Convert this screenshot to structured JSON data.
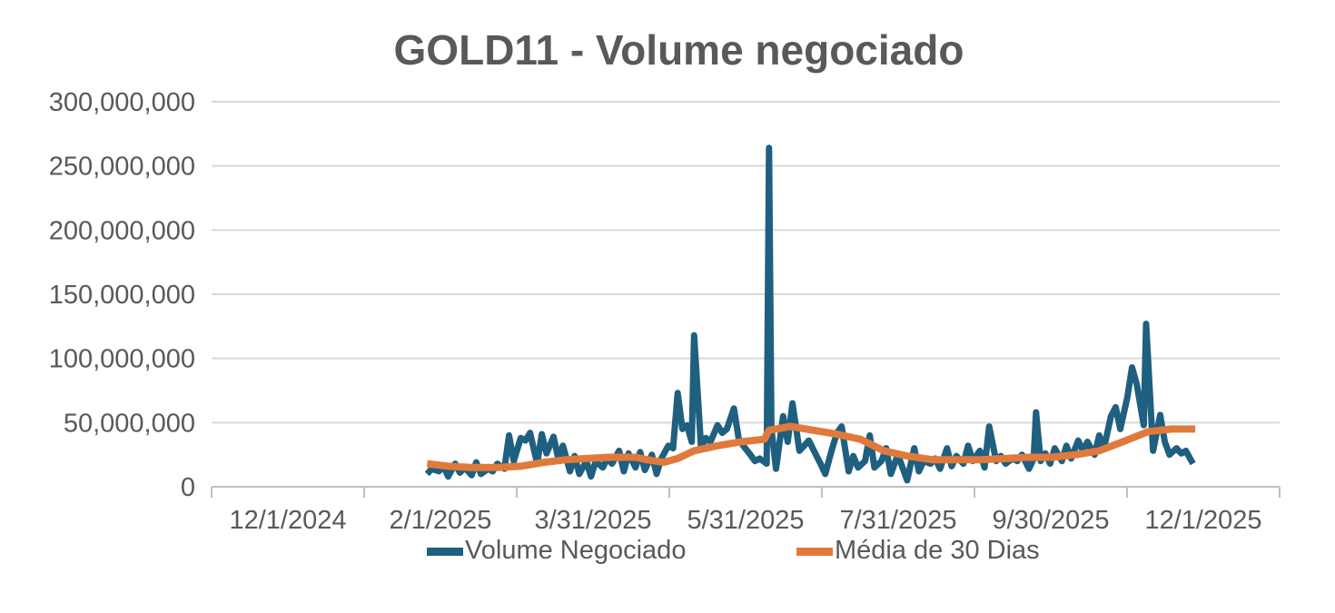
{
  "chart_data": {
    "type": "line",
    "title": "GOLD11 - Volume negociado",
    "xlabel": "",
    "ylabel": "",
    "ylim": [
      0,
      300000000
    ],
    "xlim": [
      "2024-10-01",
      "2025-12-31"
    ],
    "y_ticks": [
      "0",
      "50,000,000",
      "100,000,000",
      "150,000,000",
      "200,000,000",
      "250,000,000",
      "300,000,000"
    ],
    "x_ticks": [
      {
        "date": "2024-12-01",
        "label": "12/1/2024"
      },
      {
        "date": "2025-02-01",
        "label": "2/1/2025"
      },
      {
        "date": "2025-03-31",
        "label": "3/31/2025"
      },
      {
        "date": "2025-05-31",
        "label": "5/31/2025"
      },
      {
        "date": "2025-07-31",
        "label": "7/31/2025"
      },
      {
        "date": "2025-09-30",
        "label": "9/30/2025"
      },
      {
        "date": "2025-12-01",
        "label": "12/1/2025"
      }
    ],
    "grid": true,
    "legend": "bottom",
    "series": [
      {
        "name": "Volume Negociado",
        "color": "#1f5f7f",
        "points": [
          [
            "2025-01-01",
            10000000
          ],
          [
            "2025-01-03",
            14000000
          ],
          [
            "2025-01-06",
            12000000
          ],
          [
            "2025-01-08",
            16000000
          ],
          [
            "2025-01-10",
            8000000
          ],
          [
            "2025-01-13",
            18000000
          ],
          [
            "2025-01-15",
            11000000
          ],
          [
            "2025-01-17",
            15000000
          ],
          [
            "2025-01-20",
            9000000
          ],
          [
            "2025-01-22",
            19000000
          ],
          [
            "2025-01-24",
            10000000
          ],
          [
            "2025-01-27",
            14000000
          ],
          [
            "2025-01-29",
            12000000
          ],
          [
            "2025-01-31",
            18000000
          ],
          [
            "2025-02-03",
            14000000
          ],
          [
            "2025-02-05",
            40000000
          ],
          [
            "2025-02-07",
            20000000
          ],
          [
            "2025-02-10",
            38000000
          ],
          [
            "2025-02-12",
            36000000
          ],
          [
            "2025-02-14",
            42000000
          ],
          [
            "2025-02-17",
            18000000
          ],
          [
            "2025-02-19",
            41000000
          ],
          [
            "2025-02-21",
            26000000
          ],
          [
            "2025-02-24",
            39000000
          ],
          [
            "2025-02-26",
            22000000
          ],
          [
            "2025-02-28",
            32000000
          ],
          [
            "2025-03-03",
            12000000
          ],
          [
            "2025-03-05",
            24000000
          ],
          [
            "2025-03-07",
            10000000
          ],
          [
            "2025-03-10",
            20000000
          ],
          [
            "2025-03-12",
            8000000
          ],
          [
            "2025-03-14",
            20000000
          ],
          [
            "2025-03-17",
            15000000
          ],
          [
            "2025-03-19",
            22000000
          ],
          [
            "2025-03-21",
            18000000
          ],
          [
            "2025-03-24",
            28000000
          ],
          [
            "2025-03-26",
            12000000
          ],
          [
            "2025-03-28",
            26000000
          ],
          [
            "2025-03-31",
            15000000
          ],
          [
            "2025-04-02",
            27000000
          ],
          [
            "2025-04-04",
            13000000
          ],
          [
            "2025-04-07",
            25000000
          ],
          [
            "2025-04-09",
            10000000
          ],
          [
            "2025-04-11",
            22000000
          ],
          [
            "2025-04-14",
            32000000
          ],
          [
            "2025-04-16",
            30000000
          ],
          [
            "2025-04-18",
            73000000
          ],
          [
            "2025-04-20",
            45000000
          ],
          [
            "2025-04-22",
            48000000
          ],
          [
            "2025-04-24",
            35000000
          ],
          [
            "2025-04-25",
            118000000
          ],
          [
            "2025-04-28",
            30000000
          ],
          [
            "2025-04-30",
            38000000
          ],
          [
            "2025-05-02",
            35000000
          ],
          [
            "2025-05-05",
            48000000
          ],
          [
            "2025-05-07",
            42000000
          ],
          [
            "2025-05-09",
            45000000
          ],
          [
            "2025-05-12",
            61000000
          ],
          [
            "2025-05-14",
            38000000
          ],
          [
            "2025-05-16",
            32000000
          ],
          [
            "2025-05-19",
            25000000
          ],
          [
            "2025-05-21",
            20000000
          ],
          [
            "2025-05-23",
            22000000
          ],
          [
            "2025-05-26",
            18000000
          ],
          [
            "2025-05-27",
            264000000
          ],
          [
            "2025-05-28",
            45000000
          ],
          [
            "2025-05-30",
            14000000
          ],
          [
            "2025-06-02",
            55000000
          ],
          [
            "2025-06-04",
            35000000
          ],
          [
            "2025-06-06",
            65000000
          ],
          [
            "2025-06-09",
            28000000
          ],
          [
            "2025-06-11",
            32000000
          ],
          [
            "2025-06-13",
            36000000
          ],
          [
            "2025-06-16",
            25000000
          ],
          [
            "2025-06-18",
            18000000
          ],
          [
            "2025-06-20",
            10000000
          ],
          [
            "2025-06-23",
            30000000
          ],
          [
            "2025-06-25",
            42000000
          ],
          [
            "2025-06-27",
            47000000
          ],
          [
            "2025-06-30",
            12000000
          ],
          [
            "2025-07-02",
            24000000
          ],
          [
            "2025-07-04",
            15000000
          ],
          [
            "2025-07-07",
            20000000
          ],
          [
            "2025-07-09",
            40000000
          ],
          [
            "2025-07-11",
            15000000
          ],
          [
            "2025-07-14",
            20000000
          ],
          [
            "2025-07-16",
            30000000
          ],
          [
            "2025-07-18",
            10000000
          ],
          [
            "2025-07-21",
            25000000
          ],
          [
            "2025-07-23",
            15000000
          ],
          [
            "2025-07-25",
            5000000
          ],
          [
            "2025-07-28",
            30000000
          ],
          [
            "2025-07-30",
            12000000
          ],
          [
            "2025-08-01",
            20000000
          ],
          [
            "2025-08-04",
            18000000
          ],
          [
            "2025-08-06",
            22000000
          ],
          [
            "2025-08-08",
            14000000
          ],
          [
            "2025-08-11",
            30000000
          ],
          [
            "2025-08-13",
            16000000
          ],
          [
            "2025-08-15",
            24000000
          ],
          [
            "2025-08-18",
            18000000
          ],
          [
            "2025-08-20",
            32000000
          ],
          [
            "2025-08-22",
            20000000
          ],
          [
            "2025-08-25",
            28000000
          ],
          [
            "2025-08-27",
            15000000
          ],
          [
            "2025-08-29",
            47000000
          ],
          [
            "2025-09-01",
            20000000
          ],
          [
            "2025-09-03",
            24000000
          ],
          [
            "2025-09-05",
            18000000
          ],
          [
            "2025-09-08",
            22000000
          ],
          [
            "2025-09-10",
            20000000
          ],
          [
            "2025-09-12",
            25000000
          ],
          [
            "2025-09-15",
            14000000
          ],
          [
            "2025-09-17",
            22000000
          ],
          [
            "2025-09-18",
            58000000
          ],
          [
            "2025-09-20",
            20000000
          ],
          [
            "2025-09-22",
            26000000
          ],
          [
            "2025-09-24",
            18000000
          ],
          [
            "2025-09-26",
            30000000
          ],
          [
            "2025-09-29",
            20000000
          ],
          [
            "2025-10-01",
            32000000
          ],
          [
            "2025-10-03",
            22000000
          ],
          [
            "2025-10-06",
            36000000
          ],
          [
            "2025-10-08",
            28000000
          ],
          [
            "2025-10-10",
            35000000
          ],
          [
            "2025-10-13",
            25000000
          ],
          [
            "2025-10-15",
            40000000
          ],
          [
            "2025-10-17",
            30000000
          ],
          [
            "2025-10-20",
            55000000
          ],
          [
            "2025-10-22",
            62000000
          ],
          [
            "2025-10-24",
            45000000
          ],
          [
            "2025-10-27",
            70000000
          ],
          [
            "2025-10-29",
            93000000
          ],
          [
            "2025-10-31",
            80000000
          ],
          [
            "2025-11-03",
            48000000
          ],
          [
            "2025-11-04",
            127000000
          ],
          [
            "2025-11-06",
            60000000
          ],
          [
            "2025-11-07",
            28000000
          ],
          [
            "2025-11-10",
            56000000
          ],
          [
            "2025-11-12",
            35000000
          ],
          [
            "2025-11-14",
            25000000
          ],
          [
            "2025-11-17",
            30000000
          ],
          [
            "2025-11-19",
            26000000
          ],
          [
            "2025-11-21",
            28000000
          ],
          [
            "2025-11-24",
            18000000
          ]
        ]
      },
      {
        "name": "Média de 30 Dias",
        "color": "#e07a3c",
        "points": [
          [
            "2025-01-01",
            18000000
          ],
          [
            "2025-01-10",
            16000000
          ],
          [
            "2025-01-20",
            15000000
          ],
          [
            "2025-01-31",
            15000000
          ],
          [
            "2025-02-10",
            16000000
          ],
          [
            "2025-02-20",
            19000000
          ],
          [
            "2025-03-01",
            21000000
          ],
          [
            "2025-03-10",
            22000000
          ],
          [
            "2025-03-20",
            23000000
          ],
          [
            "2025-03-31",
            23000000
          ],
          [
            "2025-04-05",
            21000000
          ],
          [
            "2025-04-12",
            19000000
          ],
          [
            "2025-04-18",
            22000000
          ],
          [
            "2025-04-25",
            28000000
          ],
          [
            "2025-05-05",
            32000000
          ],
          [
            "2025-05-15",
            35000000
          ],
          [
            "2025-05-25",
            37000000
          ],
          [
            "2025-05-27",
            44000000
          ],
          [
            "2025-06-05",
            47000000
          ],
          [
            "2025-06-15",
            44000000
          ],
          [
            "2025-06-25",
            41000000
          ],
          [
            "2025-07-05",
            37000000
          ],
          [
            "2025-07-15",
            28000000
          ],
          [
            "2025-07-25",
            24000000
          ],
          [
            "2025-08-05",
            21000000
          ],
          [
            "2025-08-15",
            21000000
          ],
          [
            "2025-08-25",
            21000000
          ],
          [
            "2025-09-05",
            22000000
          ],
          [
            "2025-09-15",
            23000000
          ],
          [
            "2025-09-25",
            23000000
          ],
          [
            "2025-10-05",
            25000000
          ],
          [
            "2025-10-15",
            28000000
          ],
          [
            "2025-10-25",
            35000000
          ],
          [
            "2025-11-05",
            43000000
          ],
          [
            "2025-11-15",
            45000000
          ],
          [
            "2025-11-25",
            45000000
          ]
        ]
      }
    ]
  }
}
